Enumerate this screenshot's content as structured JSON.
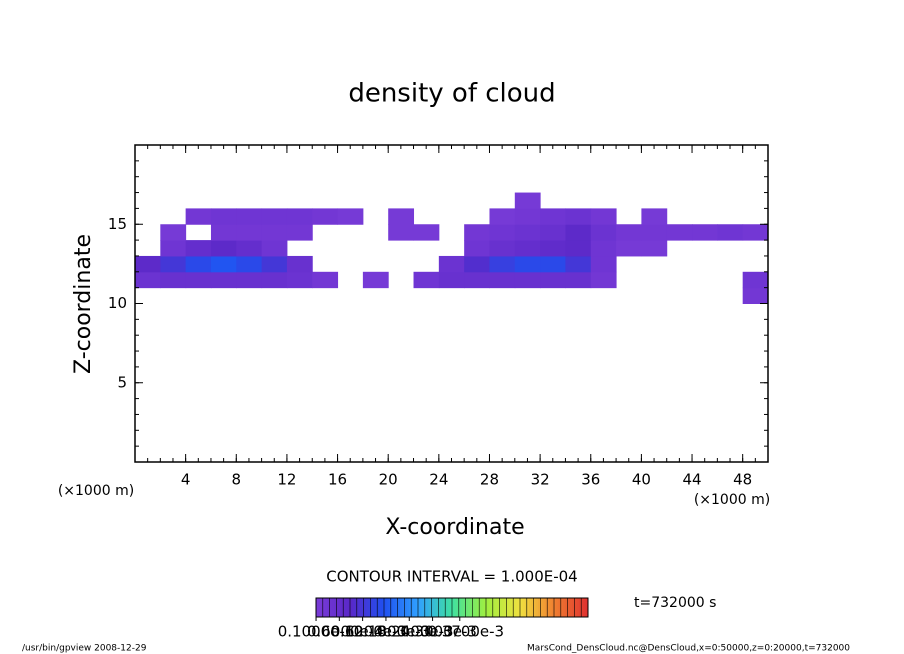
{
  "chart_data": {
    "type": "contour",
    "title": "density of cloud",
    "x_label": "X-coordinate",
    "y_label": "Z-coordinate",
    "x_unit_label": "(×1000 m)",
    "contour_interval": "CONTOUR INTERVAL = 1.000E-04",
    "time_label": "t=732000 s",
    "footer_left": "/usr/bin/gpview   2008-12-29",
    "footer_right": "MarsCond_DensCloud.nc@DensCloud,x=0:50000,z=0:20000,t=732000",
    "xlim": [
      0,
      50
    ],
    "ylim": [
      0,
      20
    ],
    "xticks": [
      4,
      8,
      12,
      16,
      20,
      24,
      28,
      32,
      36,
      40,
      44,
      48
    ],
    "yticks": [
      5,
      10,
      15
    ],
    "x": [
      1,
      3,
      5,
      7,
      9,
      11,
      13,
      15,
      17,
      19,
      21,
      23,
      25,
      27,
      29,
      31,
      33,
      35,
      37,
      39,
      41,
      43,
      45,
      47,
      49
    ],
    "z": [
      10.5,
      11.5,
      12.5,
      13.5,
      14.5,
      15.5,
      16.5
    ],
    "values": [
      [
        null,
        null,
        null,
        null,
        null,
        null,
        null,
        null,
        null,
        null,
        null,
        null,
        null,
        null,
        null,
        null,
        null,
        null,
        null,
        null,
        null,
        null,
        null,
        null,
        2e-05
      ],
      [
        4e-05,
        5e-05,
        5e-05,
        5e-05,
        5e-05,
        5e-05,
        4e-05,
        2e-05,
        null,
        1e-05,
        null,
        3e-05,
        5e-05,
        5e-05,
        5e-05,
        5e-05,
        5e-05,
        5e-05,
        2e-05,
        null,
        null,
        null,
        null,
        null,
        3e-05
      ],
      [
        8e-05,
        0.00012,
        0.00016,
        0.00018,
        0.00016,
        0.00012,
        5e-05,
        null,
        null,
        null,
        null,
        null,
        4e-05,
        0.0001,
        0.00014,
        0.00016,
        0.00016,
        0.00012,
        3e-05,
        null,
        null,
        null,
        null,
        null,
        null
      ],
      [
        null,
        3e-05,
        6e-05,
        8e-05,
        6e-05,
        3e-05,
        null,
        null,
        null,
        null,
        null,
        null,
        null,
        3e-05,
        5e-05,
        6e-05,
        7e-05,
        8e-05,
        3e-05,
        1e-05,
        1e-05,
        null,
        null,
        null,
        null
      ],
      [
        null,
        1e-05,
        null,
        2e-05,
        2e-05,
        2e-05,
        2e-05,
        null,
        null,
        null,
        1e-05,
        1e-05,
        null,
        2e-05,
        3e-05,
        4e-05,
        5e-05,
        8e-05,
        4e-05,
        2e-05,
        2e-05,
        2e-05,
        2e-05,
        3e-05,
        2e-05
      ],
      [
        null,
        null,
        2e-05,
        3e-05,
        3e-05,
        3e-05,
        3e-05,
        2e-05,
        1e-05,
        null,
        1e-05,
        null,
        null,
        null,
        1e-05,
        2e-05,
        3e-05,
        4e-05,
        2e-05,
        null,
        1e-05,
        null,
        null,
        null,
        null
      ],
      [
        null,
        null,
        null,
        null,
        null,
        null,
        null,
        null,
        null,
        null,
        null,
        null,
        null,
        null,
        null,
        1e-05,
        null,
        null,
        null,
        null,
        null,
        null,
        null,
        null,
        null
      ]
    ],
    "clim": [
      0,
      0.0007
    ],
    "colors": [
      "#7a3cd8",
      "#5a28c8",
      "#2050f0",
      "#30a0ff",
      "#40e0a0",
      "#a0f040",
      "#f0e040",
      "#f08030",
      "#e03030"
    ],
    "colorbar_ticks": [
      {
        "value": 1e-07,
        "label": "0.1000e-6"
      },
      {
        "value": 6e-05,
        "label": "0.6000e-4"
      },
      {
        "value": 0.00012,
        "label": "0.1200e-3"
      },
      {
        "value": 0.00018,
        "label": "0.1800e-3"
      },
      {
        "value": 0.00024,
        "label": "0.2400e-3"
      },
      {
        "value": 0.0003,
        "label": "0.3000e-3"
      },
      {
        "value": 0.00037,
        "label": "0.3700e-3"
      }
    ]
  }
}
